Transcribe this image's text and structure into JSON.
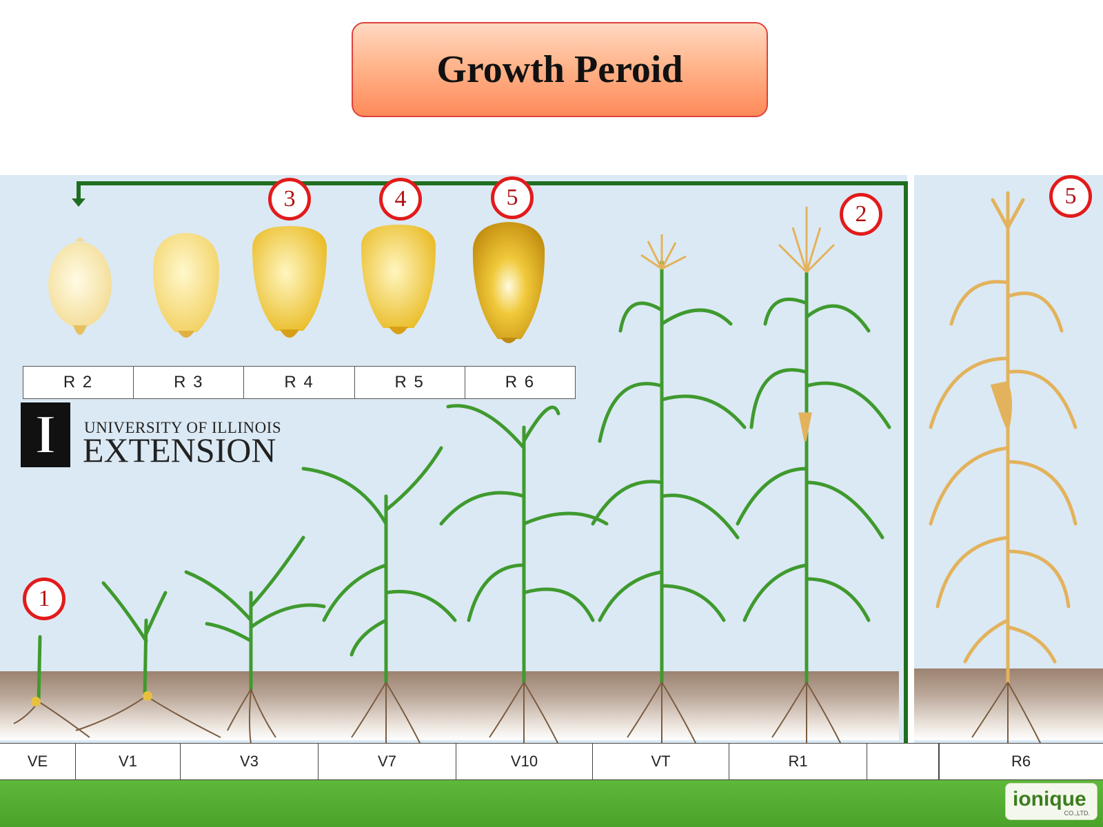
{
  "title": "Growth Peroid",
  "kernel_labels": [
    "R 2",
    "R 3",
    "R 4",
    "R 5",
    "R 6"
  ],
  "stage_labels": [
    "VE",
    "V1",
    "V3",
    "V7",
    "V10",
    "VT",
    "R1",
    "",
    "",
    "R6"
  ],
  "markers": [
    "1",
    "2",
    "3",
    "4",
    "5",
    "5"
  ],
  "logo": {
    "line1": "UNIVERSITY OF ILLINOIS",
    "line2": "EXTENSION",
    "mark": "I"
  },
  "brand": {
    "name": "ionique",
    "sub": "CO.,LTD."
  },
  "colors": {
    "leaf": "#3f9a2e",
    "dry_plant": "#e3b25c",
    "arrow": "#1f6e1f",
    "marker_ring": "#e21b1b"
  },
  "icons": [
    "corn-plant-icon",
    "corn-kernel-icon",
    "university-logo-icon",
    "arrow-icon"
  ]
}
